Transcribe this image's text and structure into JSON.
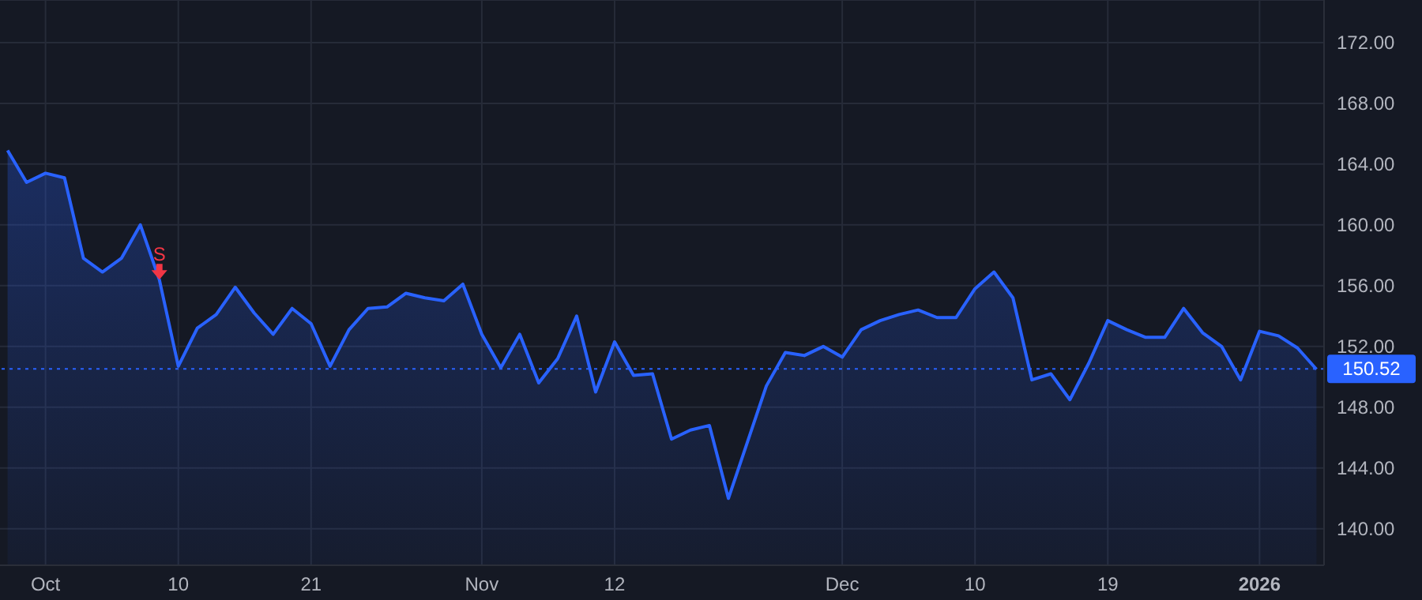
{
  "chart_data": {
    "type": "area",
    "categories": [
      null,
      null,
      "Oct",
      null,
      null,
      null,
      null,
      null,
      null,
      "10",
      null,
      null,
      null,
      null,
      null,
      null,
      "21",
      null,
      null,
      null,
      null,
      null,
      null,
      null,
      null,
      "Nov",
      null,
      null,
      null,
      null,
      null,
      null,
      "12",
      null,
      null,
      null,
      null,
      null,
      null,
      null,
      null,
      null,
      null,
      null,
      "Dec",
      null,
      null,
      null,
      null,
      null,
      null,
      "10",
      null,
      null,
      null,
      null,
      null,
      null,
      "19",
      null,
      null,
      null,
      null,
      null,
      null,
      null,
      "2026",
      null,
      null,
      null
    ],
    "series": [
      {
        "color": "#2962ff",
        "values": [
          164.9,
          162.8,
          163.4,
          163.1,
          157.8,
          156.9,
          157.8,
          160.0,
          156.4,
          150.7,
          153.2,
          154.1,
          155.9,
          154.2,
          152.8,
          154.5,
          153.5,
          150.7,
          153.1,
          154.5,
          154.6,
          155.5,
          155.2,
          155.0,
          156.1,
          152.8,
          150.6,
          152.8,
          149.6,
          151.2,
          154.0,
          149.0,
          152.3,
          150.1,
          150.2,
          145.9,
          146.5,
          146.8,
          142.0,
          145.7,
          149.4,
          151.6,
          151.4,
          152.0,
          151.3,
          153.1,
          153.7,
          154.1,
          154.4,
          153.9,
          153.9,
          155.8,
          156.9,
          155.2,
          149.8,
          150.2,
          148.5,
          150.9,
          153.7,
          153.1,
          152.6,
          152.6,
          154.5,
          152.9,
          152.0,
          149.8,
          153.0,
          152.7,
          151.9,
          150.5
        ]
      }
    ],
    "ylim": [
      137.6,
      174.8
    ],
    "yticks": [
      {
        "value": 140,
        "label": "140.00"
      },
      {
        "value": 144,
        "label": "144.00"
      },
      {
        "value": 148,
        "label": "148.00"
      },
      {
        "value": 152,
        "label": "152.00"
      },
      {
        "value": 156,
        "label": "156.00"
      },
      {
        "value": 160,
        "label": "160.00"
      },
      {
        "value": 164,
        "label": "164.00"
      },
      {
        "value": 168,
        "label": "168.00"
      },
      {
        "value": 172,
        "label": "172.00"
      }
    ],
    "ref_lines": [
      {
        "axis": "y",
        "value": 150.52,
        "label": "150.52",
        "color": "#2962ff",
        "line_style": "dotted"
      }
    ],
    "annotations": [
      {
        "text": "S",
        "y": 156.4
      }
    ],
    "grid": true,
    "marker": "none",
    "line_style": "solid"
  }
}
